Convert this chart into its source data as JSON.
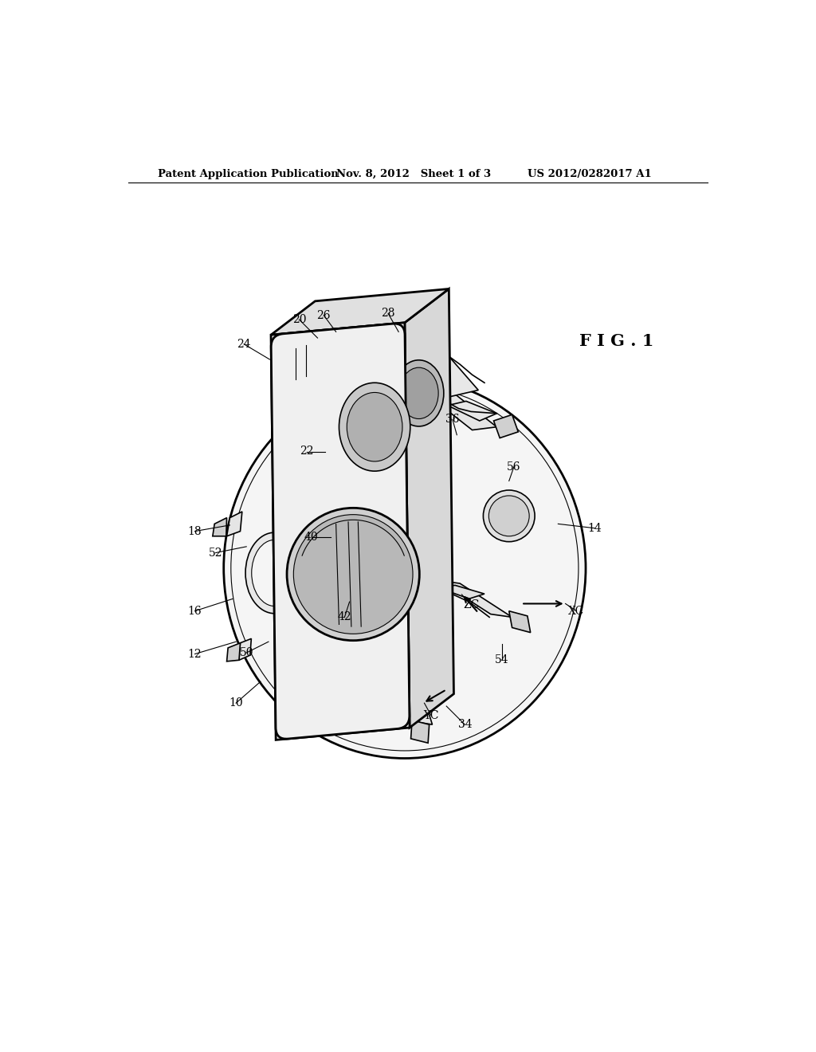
{
  "background": "#ffffff",
  "header_left": "Patent Application Publication",
  "header_mid": "Nov. 8, 2012   Sheet 1 of 3",
  "header_right": "US 2012/0282017 A1",
  "fig_label": "F I G . 1",
  "lc": "#000000",
  "labels": [
    [
      "10",
      215,
      940,
      255,
      905
    ],
    [
      "12",
      148,
      860,
      215,
      840
    ],
    [
      "14",
      800,
      655,
      740,
      648
    ],
    [
      "16",
      148,
      790,
      210,
      770
    ],
    [
      "18",
      148,
      660,
      205,
      650
    ],
    [
      "20",
      318,
      315,
      348,
      345
    ],
    [
      "22",
      330,
      530,
      360,
      530
    ],
    [
      "24",
      228,
      355,
      270,
      380
    ],
    [
      "26",
      358,
      308,
      378,
      335
    ],
    [
      "28",
      463,
      305,
      480,
      335
    ],
    [
      "34",
      588,
      975,
      558,
      945
    ],
    [
      "36",
      568,
      478,
      575,
      503
    ],
    [
      "40",
      338,
      670,
      370,
      670
    ],
    [
      "42",
      392,
      800,
      400,
      775
    ],
    [
      "50",
      232,
      858,
      268,
      840
    ],
    [
      "52",
      182,
      695,
      232,
      685
    ],
    [
      "54",
      648,
      870,
      648,
      843
    ],
    [
      "56",
      668,
      555,
      660,
      578
    ],
    [
      "XC",
      770,
      790,
      752,
      778
    ],
    [
      "YC",
      533,
      960,
      522,
      940
    ],
    [
      "ZC",
      598,
      780,
      583,
      763
    ]
  ]
}
